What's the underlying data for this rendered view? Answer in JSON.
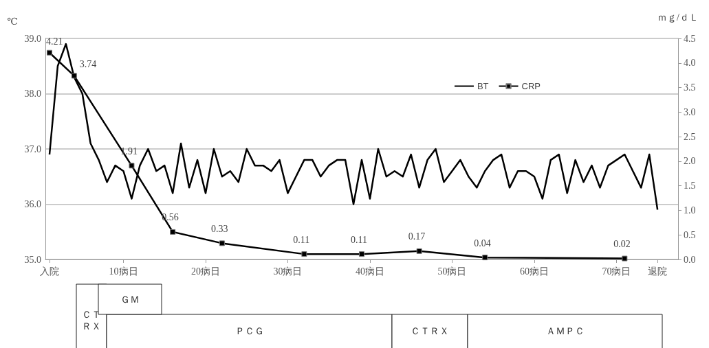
{
  "chart_data": {
    "type": "line",
    "ylabel": "℃",
    "y2label": "ｍｇ/ｄＬ",
    "xlim": [
      0.5,
      77.5
    ],
    "xticks": [
      {
        "value": 1,
        "label": "入院"
      },
      {
        "value": 10,
        "label": "10病日"
      },
      {
        "value": 20,
        "label": "20病日"
      },
      {
        "value": 30,
        "label": "30病日"
      },
      {
        "value": 40,
        "label": "40病日"
      },
      {
        "value": 50,
        "label": "50病日"
      },
      {
        "value": 60,
        "label": "60病日"
      },
      {
        "value": 70,
        "label": "70病日"
      },
      {
        "value": 75,
        "label": "退院"
      }
    ],
    "ylim": [
      35,
      39
    ],
    "yticks": [
      {
        "value": 35,
        "label": "35.0"
      },
      {
        "value": 36,
        "label": "36.0"
      },
      {
        "value": 37,
        "label": "37.0"
      },
      {
        "value": 38,
        "label": "38.0"
      },
      {
        "value": 39,
        "label": "39.0"
      }
    ],
    "y2lim": [
      0,
      4.5
    ],
    "y2ticks": [
      {
        "value": 0,
        "label": "0.0"
      },
      0.5,
      {
        "value": 1,
        "label": "1.0"
      },
      1.5,
      {
        "value": 2,
        "label": "2.0"
      },
      2.5,
      {
        "value": 3,
        "label": "3.0"
      },
      3.5,
      {
        "value": 4,
        "label": "4.0"
      },
      4.5
    ],
    "grid": "y",
    "legend": "top right",
    "series": [
      {
        "name": "BT",
        "color": "#000000",
        "marker": "none",
        "x": [
          1,
          2,
          3,
          4,
          5,
          6,
          7,
          8,
          9,
          10,
          11,
          12,
          13,
          14,
          15,
          16,
          17,
          18,
          19,
          20,
          21,
          22,
          23,
          24,
          25,
          26,
          27,
          28,
          29,
          30,
          31,
          32,
          33,
          34,
          35,
          36,
          37,
          38,
          39,
          40,
          41,
          42,
          43,
          44,
          45,
          46,
          47,
          48,
          49,
          50,
          51,
          52,
          53,
          54,
          55,
          56,
          57,
          58,
          59,
          60,
          61,
          62,
          63,
          64,
          65,
          66,
          67,
          68,
          69,
          70,
          71,
          72,
          73,
          74,
          75
        ],
        "values": [
          36.9,
          38.5,
          38.9,
          38.3,
          38.0,
          37.1,
          36.8,
          36.4,
          36.7,
          36.6,
          36.1,
          36.7,
          37.0,
          36.6,
          36.7,
          36.2,
          37.1,
          36.3,
          36.8,
          36.2,
          37.0,
          36.5,
          36.6,
          36.4,
          37.0,
          36.7,
          36.7,
          36.6,
          36.8,
          36.2,
          36.5,
          36.8,
          36.8,
          36.5,
          36.7,
          36.8,
          36.8,
          36.0,
          36.8,
          36.1,
          37.0,
          36.5,
          36.6,
          36.5,
          36.9,
          36.3,
          36.8,
          37.0,
          36.4,
          36.6,
          36.8,
          36.5,
          36.3,
          36.6,
          36.8,
          36.9,
          36.3,
          36.6,
          36.6,
          36.5,
          36.1,
          36.8,
          36.9,
          36.2,
          36.8,
          36.4,
          36.7,
          36.3,
          36.7,
          36.8,
          36.9,
          36.6,
          36.3,
          36.9,
          35.9
        ]
      },
      {
        "name": "CRP",
        "color": "#000000",
        "marker": "square",
        "axis": "y2",
        "data_labels": true,
        "x": [
          1,
          4,
          11,
          16,
          22,
          32,
          39,
          46,
          54,
          71
        ],
        "values": [
          4.21,
          3.74,
          1.91,
          0.56,
          0.33,
          0.11,
          0.11,
          0.17,
          0.04,
          0.02
        ]
      }
    ],
    "annotations": [
      "ＣＴＲＸ",
      "ＧＭ",
      "ＰＣＧ",
      "ＣＴＲＸ",
      "ＡＭＰＣ"
    ]
  }
}
